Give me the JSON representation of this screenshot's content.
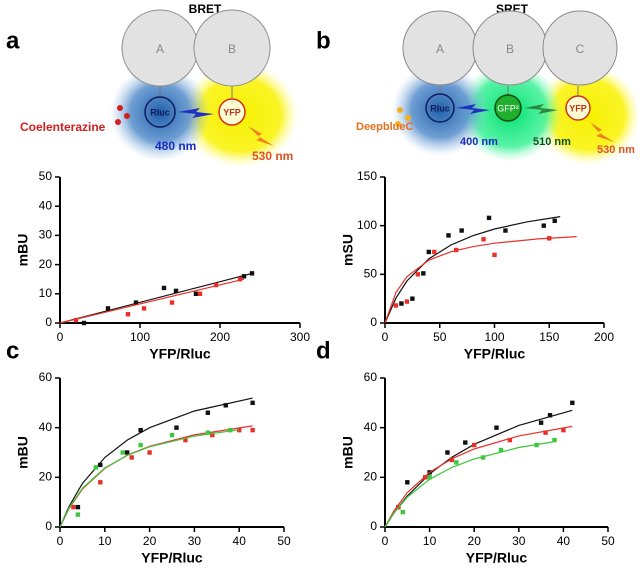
{
  "panel_labels": [
    "a",
    "b",
    "c",
    "d"
  ],
  "diagrams": {
    "bret": {
      "title": "BRET",
      "proteins": [
        "A",
        "B"
      ],
      "donor": "Rluc",
      "acceptor": "YFP",
      "substrate": "Coelenterazine",
      "donor_emission": "480 nm",
      "acceptor_emission": "530 nm"
    },
    "sret": {
      "title": "SRET",
      "proteins": [
        "A",
        "B",
        "C"
      ],
      "donor": "Rluc",
      "intermediate": "GFP²",
      "acceptor": "YFP",
      "substrate": "DeepblueC",
      "donor_emission": "400 nm",
      "intermediate_emission": "510 nm",
      "acceptor_emission": "530 nm"
    }
  },
  "chart_data": [
    {
      "type": "scatter",
      "xlabel": "YFP/Rluc",
      "ylabel": "mBU",
      "xlim": [
        0,
        300
      ],
      "ylim": [
        0,
        50
      ],
      "xticks": [
        0,
        100,
        200,
        300
      ],
      "yticks": [
        0,
        10,
        20,
        30,
        40,
        50
      ],
      "series": [
        {
          "color": "#111111",
          "x": [
            30,
            60,
            95,
            130,
            145,
            170,
            230,
            240
          ],
          "y": [
            0,
            5,
            7,
            12,
            11,
            10,
            16,
            17
          ],
          "fit_x": [
            0,
            240
          ],
          "fit_y": [
            0,
            17
          ]
        },
        {
          "color": "#e8302a",
          "x": [
            20,
            85,
            105,
            140,
            175,
            195,
            225
          ],
          "y": [
            1,
            3,
            5,
            7,
            10,
            13,
            15
          ],
          "fit_x": [
            0,
            230
          ],
          "fit_y": [
            0,
            15
          ]
        }
      ]
    },
    {
      "type": "scatter",
      "xlabel": "YFP/Rluc",
      "ylabel": "mSU",
      "xlim": [
        0,
        200
      ],
      "ylim": [
        0,
        150
      ],
      "xticks": [
        0,
        50,
        100,
        150,
        200
      ],
      "yticks": [
        0,
        50,
        100,
        150
      ],
      "series": [
        {
          "color": "#111111",
          "x": [
            15,
            25,
            35,
            40,
            58,
            70,
            95,
            110,
            145,
            155
          ],
          "y": [
            20,
            25,
            51,
            73,
            90,
            95,
            108,
            95,
            100,
            105
          ],
          "fit_x": [
            0,
            10,
            20,
            40,
            60,
            80,
            100,
            130,
            160
          ],
          "fit_y": [
            0,
            25.5,
            43.1,
            65.9,
            80,
            89.6,
            96.6,
            104,
            109.3
          ]
        },
        {
          "color": "#e8302a",
          "x": [
            10,
            20,
            30,
            45,
            65,
            90,
            100,
            150
          ],
          "y": [
            18,
            22,
            50,
            73,
            75,
            86,
            70,
            87
          ],
          "fit_x": [
            0,
            10,
            20,
            40,
            60,
            80,
            100,
            140,
            175
          ],
          "fit_y": [
            0,
            31.3,
            47.6,
            64.5,
            73.2,
            78.4,
            82,
            86.4,
            88.8
          ]
        }
      ]
    },
    {
      "type": "scatter",
      "xlabel": "YFP/Rluc",
      "ylabel": "mBU",
      "xlim": [
        0,
        50
      ],
      "ylim": [
        0,
        60
      ],
      "xticks": [
        0,
        10,
        20,
        30,
        40,
        50
      ],
      "yticks": [
        0,
        20,
        40,
        60
      ],
      "series": [
        {
          "color": "#111111",
          "x": [
            4,
            9,
            15,
            18,
            26,
            33,
            37,
            43
          ],
          "y": [
            8,
            25,
            30,
            39,
            40,
            46,
            49,
            50
          ],
          "fit_x": [
            0,
            2,
            5,
            10,
            15,
            20,
            30,
            43
          ],
          "fit_y": [
            0,
            8.2,
            17.5,
            28,
            35,
            40,
            46.7,
            51.9
          ]
        },
        {
          "color": "#e8302a",
          "x": [
            3,
            9,
            16,
            20,
            28,
            34,
            40,
            43
          ],
          "y": [
            8,
            18,
            28,
            30,
            35,
            37,
            39,
            39
          ],
          "fit_x": [
            0,
            2,
            5,
            10,
            15,
            20,
            30,
            43
          ],
          "fit_y": [
            0,
            7.4,
            15.3,
            23.6,
            28.9,
            32.5,
            37.1,
            40.7
          ]
        },
        {
          "color": "#3cc83c",
          "x": [
            4,
            8,
            14,
            18,
            25,
            33,
            38
          ],
          "y": [
            5,
            24,
            30,
            33,
            37,
            38,
            39
          ],
          "fit_x": [
            0,
            2,
            5,
            10,
            15,
            20,
            30,
            40
          ],
          "fit_y": [
            0,
            7.7,
            15.6,
            23.8,
            28.8,
            32.3,
            36.6,
            39.2
          ]
        }
      ]
    },
    {
      "type": "scatter",
      "xlabel": "YFP/Rluc",
      "ylabel": "mBU",
      "xlim": [
        0,
        50
      ],
      "ylim": [
        0,
        60
      ],
      "xticks": [
        0,
        10,
        20,
        30,
        40,
        50
      ],
      "yticks": [
        0,
        20,
        40,
        60
      ],
      "series": [
        {
          "color": "#111111",
          "x": [
            3,
            5,
            10,
            14,
            18,
            25,
            35,
            37,
            42
          ],
          "y": [
            8,
            18,
            22,
            30,
            34,
            40,
            42,
            45,
            50
          ],
          "fit_x": [
            0,
            2,
            5,
            10,
            15,
            20,
            30,
            42
          ],
          "fit_y": [
            0,
            5.6,
            12.5,
            21.4,
            28.1,
            33.3,
            40.9,
            47
          ]
        },
        {
          "color": "#e8302a",
          "x": [
            3,
            9,
            15,
            20,
            28,
            36,
            40
          ],
          "y": [
            8,
            20,
            27,
            33,
            35,
            38,
            39
          ],
          "fit_x": [
            0,
            2,
            5,
            10,
            15,
            20,
            30,
            42
          ],
          "fit_y": [
            0,
            6.5,
            13.8,
            22,
            27.5,
            31.4,
            36.7,
            40.5
          ]
        },
        {
          "color": "#3cc83c",
          "x": [
            4,
            10,
            16,
            22,
            26,
            34,
            38
          ],
          "y": [
            6,
            20,
            26,
            28,
            31,
            33,
            35
          ],
          "fit_x": [
            0,
            2,
            5,
            10,
            15,
            20,
            30,
            38
          ],
          "fit_y": [
            0,
            5.6,
            12,
            19.2,
            24,
            27.4,
            32,
            34.4
          ]
        }
      ]
    }
  ]
}
